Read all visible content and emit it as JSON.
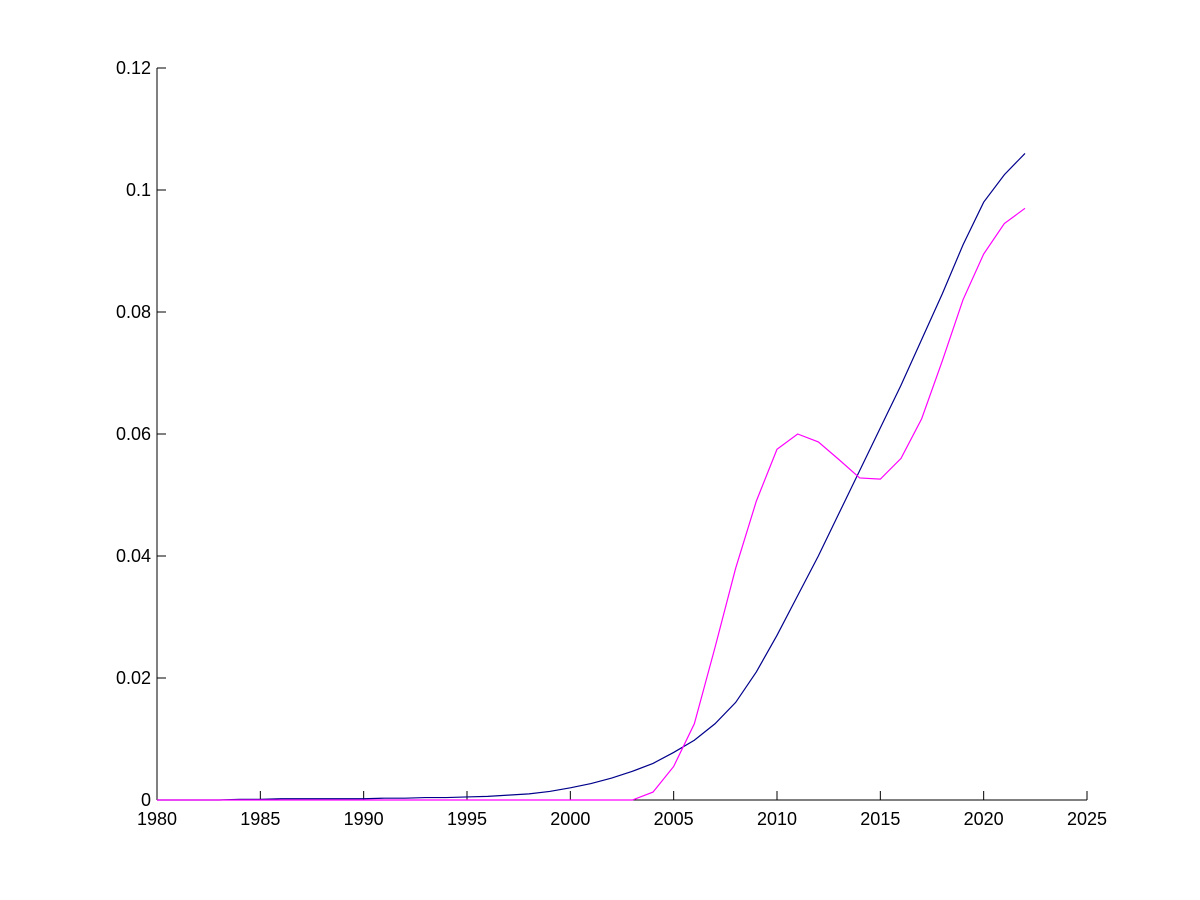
{
  "chart_data": {
    "type": "line",
    "x": [
      1980,
      1981,
      1982,
      1983,
      1984,
      1985,
      1986,
      1987,
      1988,
      1989,
      1990,
      1991,
      1992,
      1993,
      1994,
      1995,
      1996,
      1997,
      1998,
      1999,
      2000,
      2001,
      2002,
      2003,
      2004,
      2005,
      2006,
      2007,
      2008,
      2009,
      2010,
      2011,
      2012,
      2013,
      2014,
      2015,
      2016,
      2017,
      2018,
      2019,
      2020,
      2021,
      2022
    ],
    "series": [
      {
        "color": "#00008b",
        "values": [
          0,
          0,
          0,
          0,
          0.0001,
          0.0001,
          0.0002,
          0.0002,
          0.0002,
          0.0002,
          0.0002,
          0.0003,
          0.0003,
          0.0004,
          0.0004,
          0.0005,
          0.0006,
          0.0008,
          0.001,
          0.0014,
          0.002,
          0.0027,
          0.0036,
          0.0047,
          0.006,
          0.0078,
          0.0098,
          0.0125,
          0.016,
          0.021,
          0.027,
          0.0335,
          0.04,
          0.047,
          0.054,
          0.061,
          0.068,
          0.0755,
          0.083,
          0.091,
          0.098,
          0.1025,
          0.106
        ]
      },
      {
        "color": "#ff00ff",
        "values": [
          0,
          0,
          0,
          0,
          0,
          0,
          0,
          0,
          0,
          0,
          0,
          0,
          0,
          0,
          0,
          0,
          0,
          0,
          0,
          0,
          0,
          0,
          0,
          0,
          0.0013,
          0.0055,
          0.0125,
          0.025,
          0.038,
          0.049,
          0.0575,
          0.06,
          0.0587,
          0.0558,
          0.0528,
          0.0526,
          0.056,
          0.0625,
          0.072,
          0.082,
          0.0895,
          0.0945,
          0.097
        ]
      }
    ],
    "xlim": [
      1980,
      2025
    ],
    "xticks": [
      1980,
      1985,
      1990,
      1995,
      2000,
      2005,
      2010,
      2015,
      2020,
      2025
    ],
    "ylim": [
      0,
      0.12
    ],
    "yticks": [
      0,
      0.02,
      0.04,
      0.06,
      0.08,
      0.1,
      0.12
    ]
  }
}
